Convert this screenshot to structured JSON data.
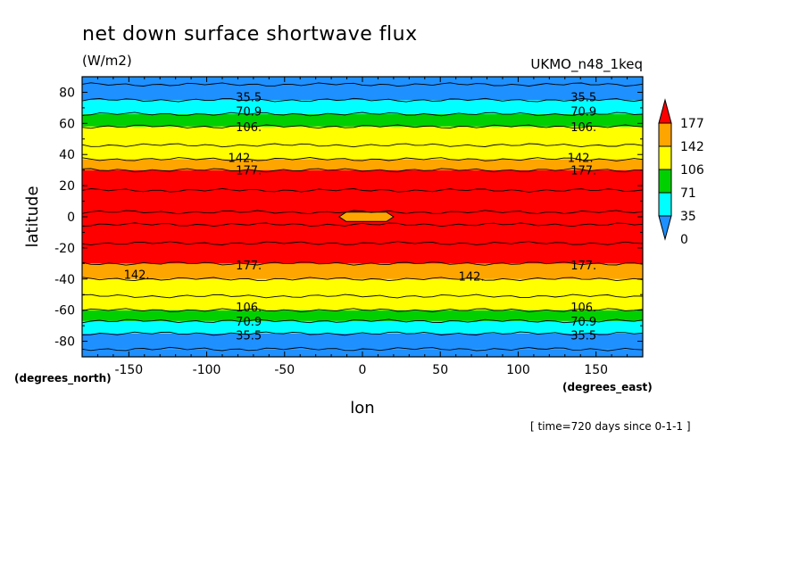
{
  "chart_data": {
    "type": "heatmap",
    "title": "net down surface shortwave flux",
    "units": "(W/m2)",
    "dataset": "UKMO_n48_1keq",
    "xlabel": "lon",
    "ylabel": "latitude",
    "x_units": "(degrees_east)",
    "y_units": "(degrees_north)",
    "note": "[ time=720 days since 0-1-1 ]",
    "xlim": [
      -180,
      180
    ],
    "ylim": [
      -90,
      90
    ],
    "x_ticks": [
      -150,
      -100,
      -50,
      0,
      50,
      100,
      150
    ],
    "y_ticks": [
      80,
      60,
      40,
      20,
      0,
      -20,
      -40,
      -60,
      -80
    ],
    "x_tick_labels": [
      "-150",
      "-100",
      "-50",
      "0",
      "50",
      "100",
      "150"
    ],
    "y_tick_labels": [
      "80",
      "60",
      "40",
      "20",
      "0",
      "-20",
      "-40",
      "-60",
      "-80"
    ],
    "levels": [
      0,
      35,
      71,
      106,
      142,
      177
    ],
    "colorbar_labels": [
      "177",
      "142",
      "106",
      "71",
      "35",
      "0"
    ],
    "colors": [
      "#1e90ff",
      "#00ffff",
      "#00d000",
      "#ffff00",
      "#ffa500",
      "#ff0000"
    ],
    "bands": [
      {
        "lat_min": -90,
        "lat_max": -85,
        "level": 0
      },
      {
        "lat_min": -85,
        "lat_max": -75,
        "level": 0
      },
      {
        "lat_min": -75,
        "lat_max": -67,
        "level": 1
      },
      {
        "lat_min": -67,
        "lat_max": -60,
        "level": 2
      },
      {
        "lat_min": -60,
        "lat_max": -40,
        "level": 3
      },
      {
        "lat_min": -40,
        "lat_max": -30,
        "level": 4
      },
      {
        "lat_min": -30,
        "lat_max": 30,
        "level": 5
      },
      {
        "lat_min": 30,
        "lat_max": 37,
        "level": 4
      },
      {
        "lat_min": 37,
        "lat_max": 58,
        "level": 3
      },
      {
        "lat_min": 58,
        "lat_max": 66,
        "level": 2
      },
      {
        "lat_min": 66,
        "lat_max": 75,
        "level": 1
      },
      {
        "lat_min": 75,
        "lat_max": 90,
        "level": 0
      }
    ],
    "patches": [
      {
        "lon_min": -15,
        "lon_max": 20,
        "lat_min": -3,
        "lat_max": 3,
        "level": 4
      }
    ],
    "contour_labels": [
      {
        "text": "35.5",
        "lon": -73,
        "lat": 77
      },
      {
        "text": "70.9",
        "lon": -73,
        "lat": 68
      },
      {
        "text": "106.",
        "lon": -73,
        "lat": 58
      },
      {
        "text": "142.",
        "lon": -78,
        "lat": 38
      },
      {
        "text": "177.",
        "lon": -73,
        "lat": 30
      },
      {
        "text": "35.5",
        "lon": 142,
        "lat": 77
      },
      {
        "text": "70.9",
        "lon": 142,
        "lat": 68
      },
      {
        "text": "106.",
        "lon": 142,
        "lat": 58
      },
      {
        "text": "142.",
        "lon": 140,
        "lat": 38
      },
      {
        "text": "177.",
        "lon": 142,
        "lat": 30
      },
      {
        "text": "177.",
        "lon": -73,
        "lat": -31
      },
      {
        "text": "142.",
        "lon": -145,
        "lat": -37
      },
      {
        "text": "142.",
        "lon": 70,
        "lat": -38
      },
      {
        "text": "177.",
        "lon": 142,
        "lat": -31
      },
      {
        "text": "106.",
        "lon": -73,
        "lat": -58
      },
      {
        "text": "70.9",
        "lon": -73,
        "lat": -67
      },
      {
        "text": "35.5",
        "lon": -73,
        "lat": -76
      },
      {
        "text": "106.",
        "lon": 142,
        "lat": -58
      },
      {
        "text": "70.9",
        "lon": 142,
        "lat": -67
      },
      {
        "text": "35.5",
        "lon": 142,
        "lat": -76
      }
    ],
    "contour_lines_lat": [
      -85,
      -75,
      -67,
      -60,
      -51,
      -40,
      -30,
      -17,
      -5,
      3,
      17,
      30,
      37,
      46,
      58,
      66,
      75,
      85
    ],
    "grid": false
  }
}
